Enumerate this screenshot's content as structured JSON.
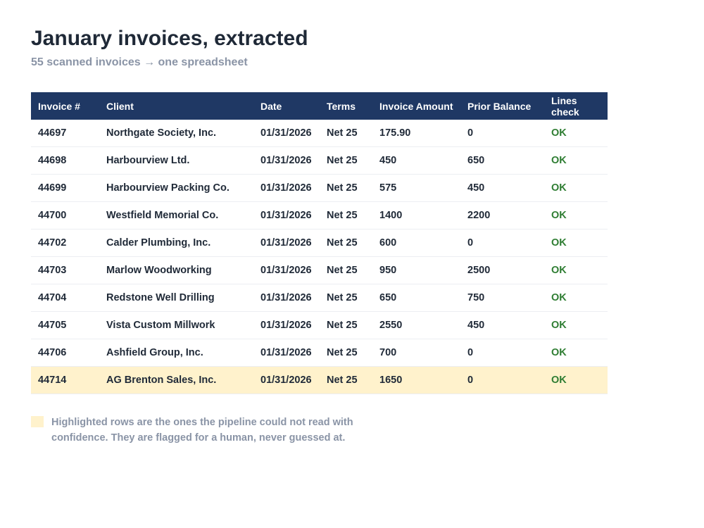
{
  "header": {
    "title": "January invoices, extracted",
    "subtitle": "55 scanned invoices → one spreadsheet"
  },
  "table": {
    "columns": [
      "Invoice #",
      "Client",
      "Date",
      "Terms",
      "Invoice Amount",
      "Prior Balance",
      "Lines check"
    ],
    "rows": [
      {
        "cells": [
          "44697",
          "Northgate Society, Inc.",
          "01/31/2026",
          "Net 25",
          "175.90",
          "0",
          "OK"
        ],
        "flagged": false
      },
      {
        "cells": [
          "44698",
          "Harbourview Ltd.",
          "01/31/2026",
          "Net 25",
          "450",
          "650",
          "OK"
        ],
        "flagged": false
      },
      {
        "cells": [
          "44699",
          "Harbourview Packing Co.",
          "01/31/2026",
          "Net 25",
          "575",
          "450",
          "OK"
        ],
        "flagged": false
      },
      {
        "cells": [
          "44700",
          "Westfield Memorial Co.",
          "01/31/2026",
          "Net 25",
          "1400",
          "2200",
          "OK"
        ],
        "flagged": false
      },
      {
        "cells": [
          "44702",
          "Calder Plumbing, Inc.",
          "01/31/2026",
          "Net 25",
          "600",
          "0",
          "OK"
        ],
        "flagged": false
      },
      {
        "cells": [
          "44703",
          "Marlow Woodworking",
          "01/31/2026",
          "Net 25",
          "950",
          "2500",
          "OK"
        ],
        "flagged": false
      },
      {
        "cells": [
          "44704",
          "Redstone Well Drilling",
          "01/31/2026",
          "Net 25",
          "650",
          "750",
          "OK"
        ],
        "flagged": false
      },
      {
        "cells": [
          "44705",
          "Vista Custom Millwork",
          "01/31/2026",
          "Net 25",
          "2550",
          "450",
          "OK"
        ],
        "flagged": false
      },
      {
        "cells": [
          "44706",
          "Ashfield Group, Inc.",
          "01/31/2026",
          "Net 25",
          "700",
          "0",
          "OK"
        ],
        "flagged": false
      },
      {
        "cells": [
          "44714",
          "AG Brenton Sales, Inc.",
          "01/31/2026",
          "Net 25",
          "1650",
          "0",
          "OK"
        ],
        "flagged": true
      }
    ]
  },
  "note": "Highlighted rows are the ones the pipeline could not read with confidence. They are flagged for a human, never guessed at."
}
